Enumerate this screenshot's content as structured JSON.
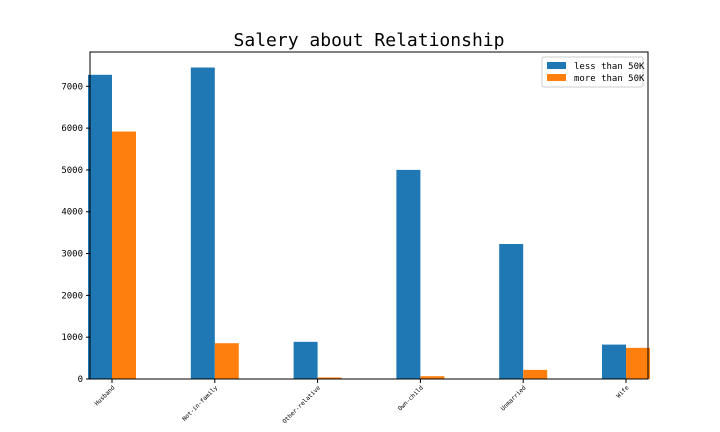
{
  "chart_data": {
    "type": "bar",
    "title": "Salery about Relationship",
    "xlabel": "",
    "ylabel": "",
    "categories": [
      "Husband",
      "Not-in-family",
      "Other-relative",
      "Own-child",
      "Unmarried",
      "Wife"
    ],
    "series": [
      {
        "name": "less than 50K",
        "color": "#1f77b4",
        "values": [
          7275,
          7449,
          889,
          5001,
          3228,
          823
        ]
      },
      {
        "name": "more than 50K",
        "color": "#ff7f0e",
        "values": [
          5918,
          856,
          37,
          67,
          218,
          745
        ]
      }
    ],
    "ylim": [
      0,
      7820
    ],
    "yticks": [
      0,
      1000,
      2000,
      3000,
      4000,
      5000,
      6000,
      7000
    ],
    "grid": false,
    "legend": "top-right"
  }
}
